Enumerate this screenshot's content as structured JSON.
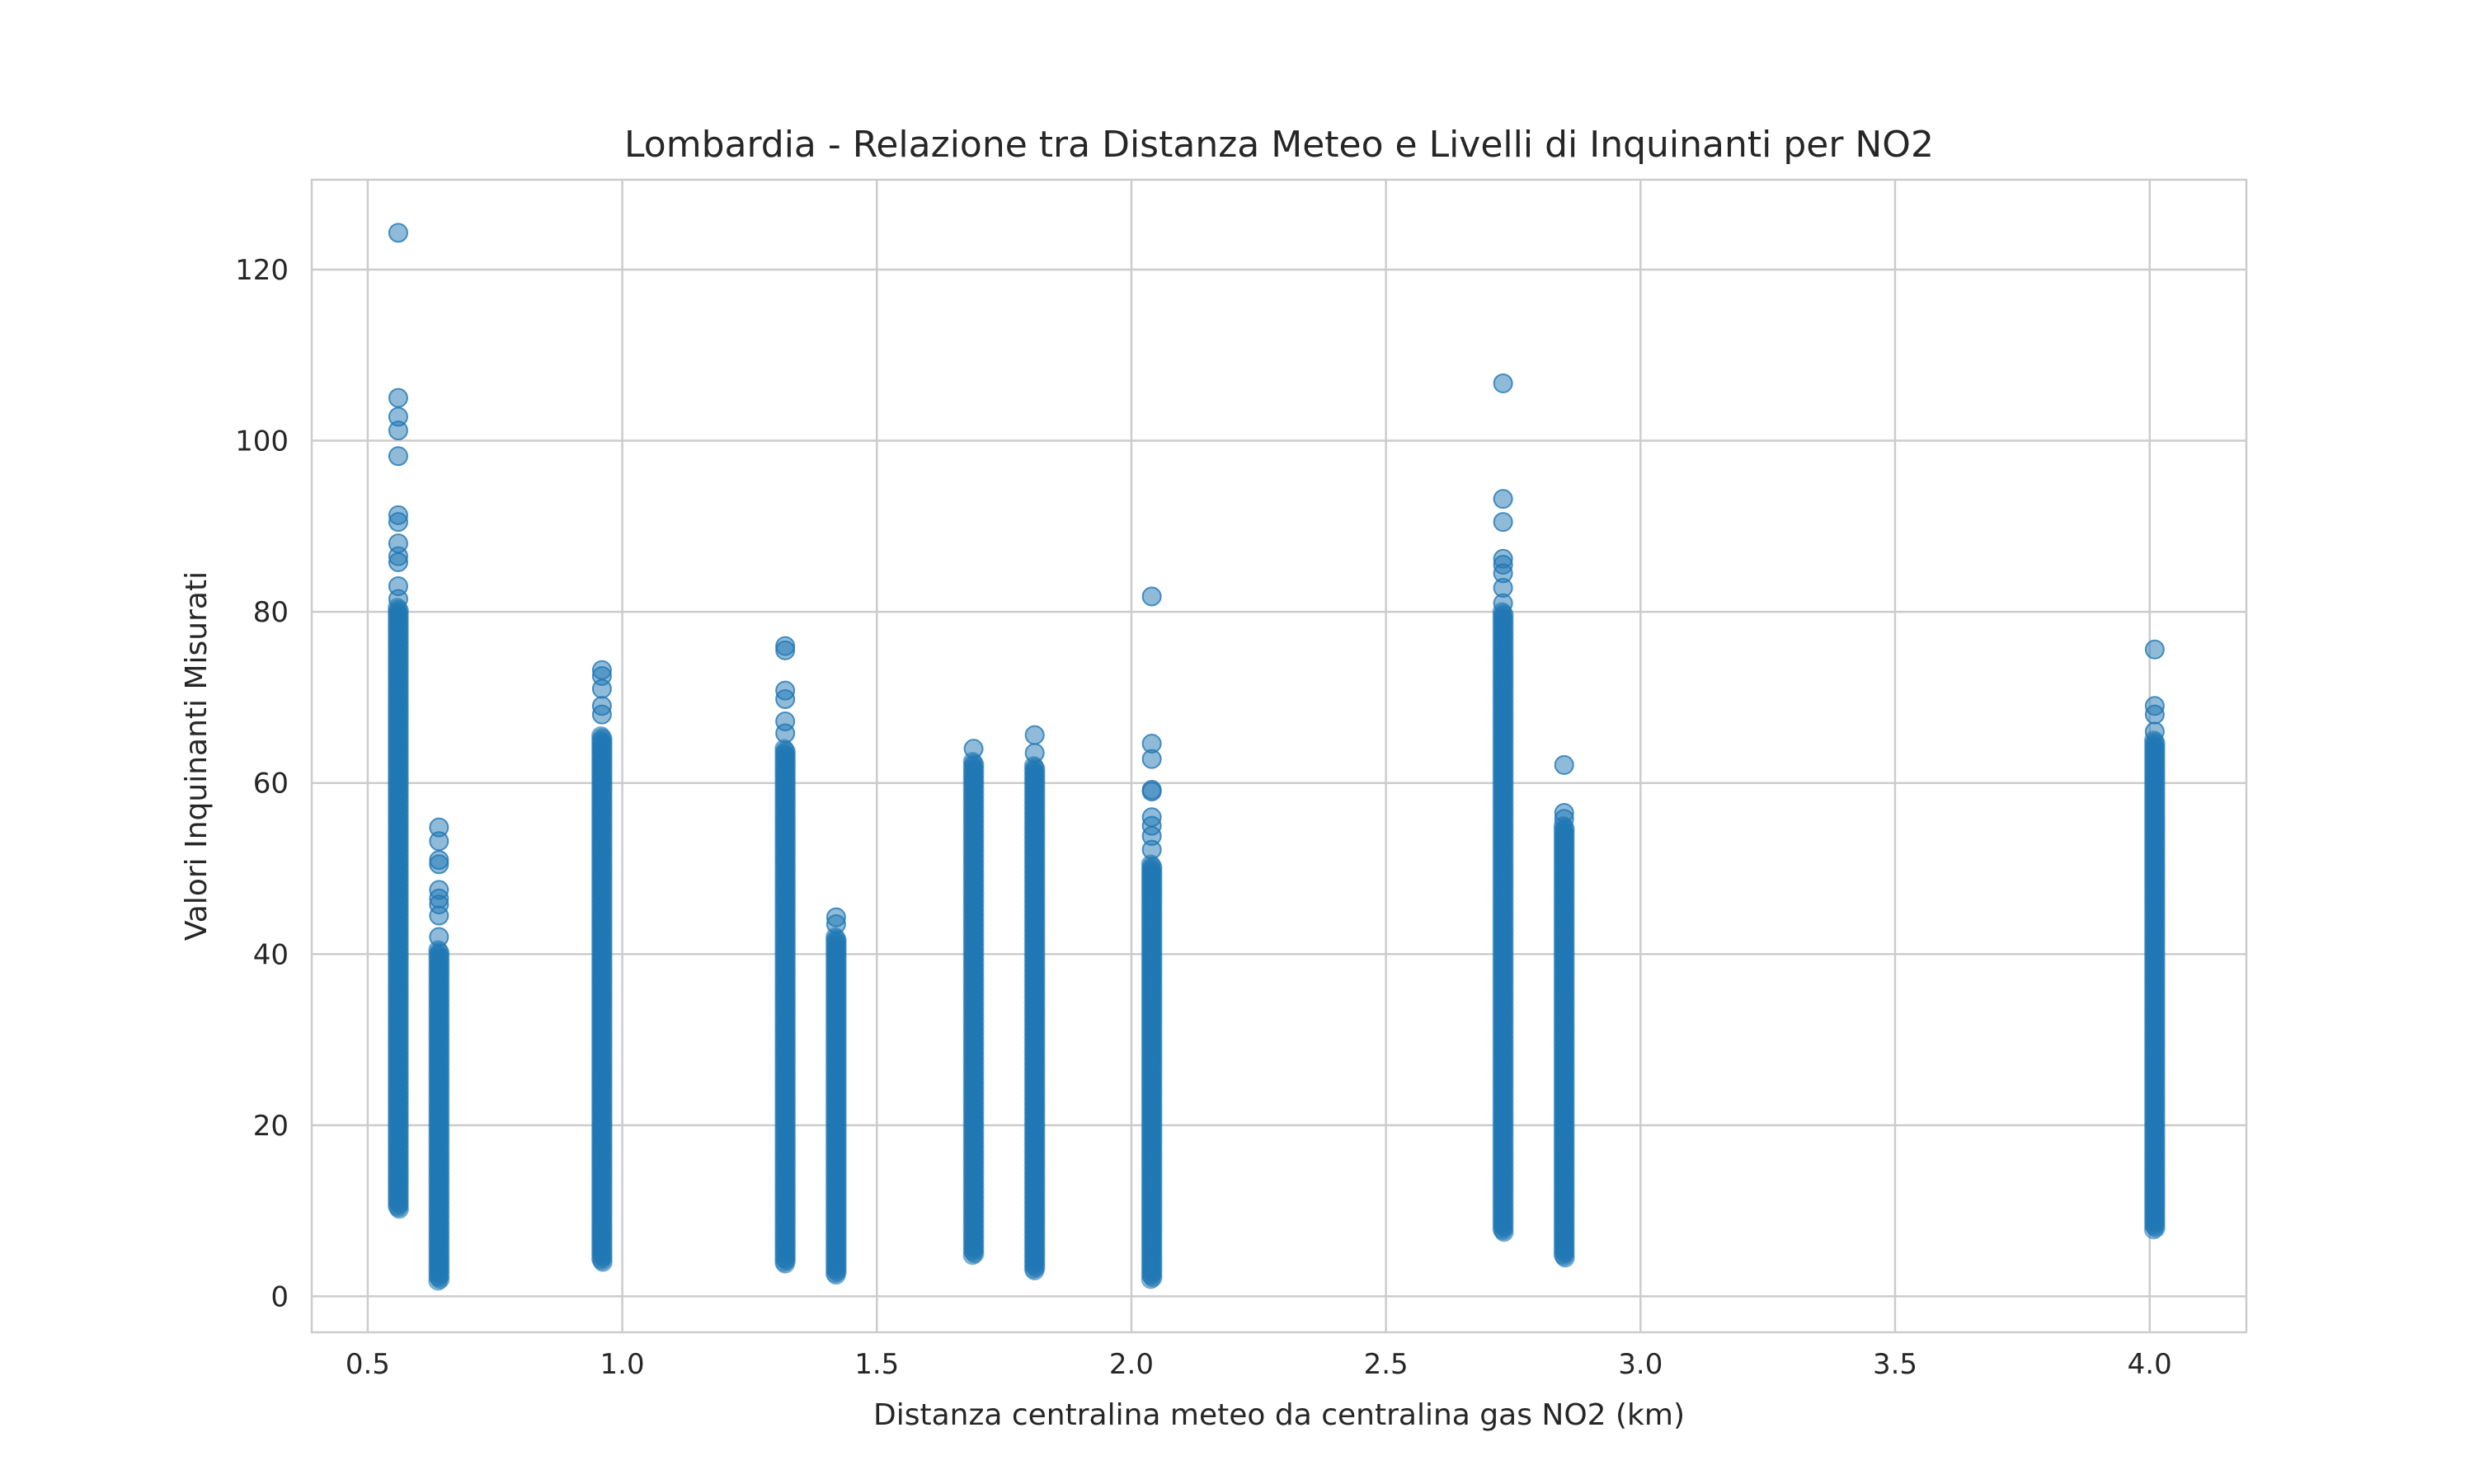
{
  "chart_data": {
    "type": "scatter",
    "title": "Lombardia - Relazione tra Distanza Meteo e Livelli di Inquinanti per NO2",
    "xlabel": "Distanza centralina meteo da centralina gas NO2 (km)",
    "ylabel": "Valori Inquinanti Misurati",
    "xlim": [
      0.39,
      4.19
    ],
    "ylim": [
      -4.2,
      130.5
    ],
    "xticks": [
      0.5,
      1.0,
      1.5,
      2.0,
      2.5,
      3.0,
      3.5,
      4.0
    ],
    "xtick_labels": [
      "0.5",
      "1.0",
      "1.5",
      "2.0",
      "2.5",
      "3.0",
      "3.5",
      "4.0"
    ],
    "yticks": [
      0,
      20,
      40,
      60,
      80,
      100,
      120
    ],
    "ytick_labels": [
      "0",
      "20",
      "40",
      "60",
      "80",
      "100",
      "120"
    ],
    "grid": true,
    "marker_color": "#1f77b4",
    "marker_alpha": 0.5,
    "columns": [
      {
        "x": 0.56,
        "dense_range": [
          10.2,
          80.5
        ],
        "outliers": [
          124.3,
          105.0,
          102.8,
          101.2,
          98.2,
          91.3,
          90.5,
          88.0,
          86.5,
          85.8,
          83.0,
          81.5
        ]
      },
      {
        "x": 0.64,
        "dense_range": [
          1.8,
          40.5
        ],
        "outliers": [
          54.8,
          53.2,
          51.0,
          50.5,
          47.5,
          46.5,
          45.8,
          44.5,
          42.0
        ]
      },
      {
        "x": 0.96,
        "dense_range": [
          4.0,
          65.5
        ],
        "outliers": [
          73.2,
          72.5,
          71.0,
          69.0,
          68.0
        ]
      },
      {
        "x": 1.32,
        "dense_range": [
          3.8,
          64.0
        ],
        "outliers": [
          76.0,
          75.5,
          70.8,
          69.8,
          67.2,
          65.8
        ]
      },
      {
        "x": 1.42,
        "dense_range": [
          2.5,
          42.0
        ],
        "outliers": [
          44.3,
          43.5
        ]
      },
      {
        "x": 1.69,
        "dense_range": [
          4.8,
          62.5
        ],
        "outliers": [
          64.0
        ]
      },
      {
        "x": 1.81,
        "dense_range": [
          3.0,
          62.0
        ],
        "outliers": [
          65.6,
          63.5
        ]
      },
      {
        "x": 2.04,
        "dense_range": [
          2.0,
          50.5
        ],
        "outliers": [
          81.8,
          64.6,
          62.8,
          59.2,
          59.0,
          56.0,
          55.0,
          53.8,
          52.2
        ]
      },
      {
        "x": 2.73,
        "dense_range": [
          7.5,
          80.0
        ],
        "outliers": [
          106.7,
          93.2,
          90.5,
          86.2,
          85.5,
          84.5,
          82.8,
          81.0
        ]
      },
      {
        "x": 2.85,
        "dense_range": [
          4.5,
          55.0
        ],
        "outliers": [
          62.1,
          56.5,
          55.8
        ]
      },
      {
        "x": 4.01,
        "dense_range": [
          7.8,
          65.0
        ],
        "outliers": [
          75.6,
          69.0,
          68.0,
          66.0
        ]
      }
    ]
  }
}
